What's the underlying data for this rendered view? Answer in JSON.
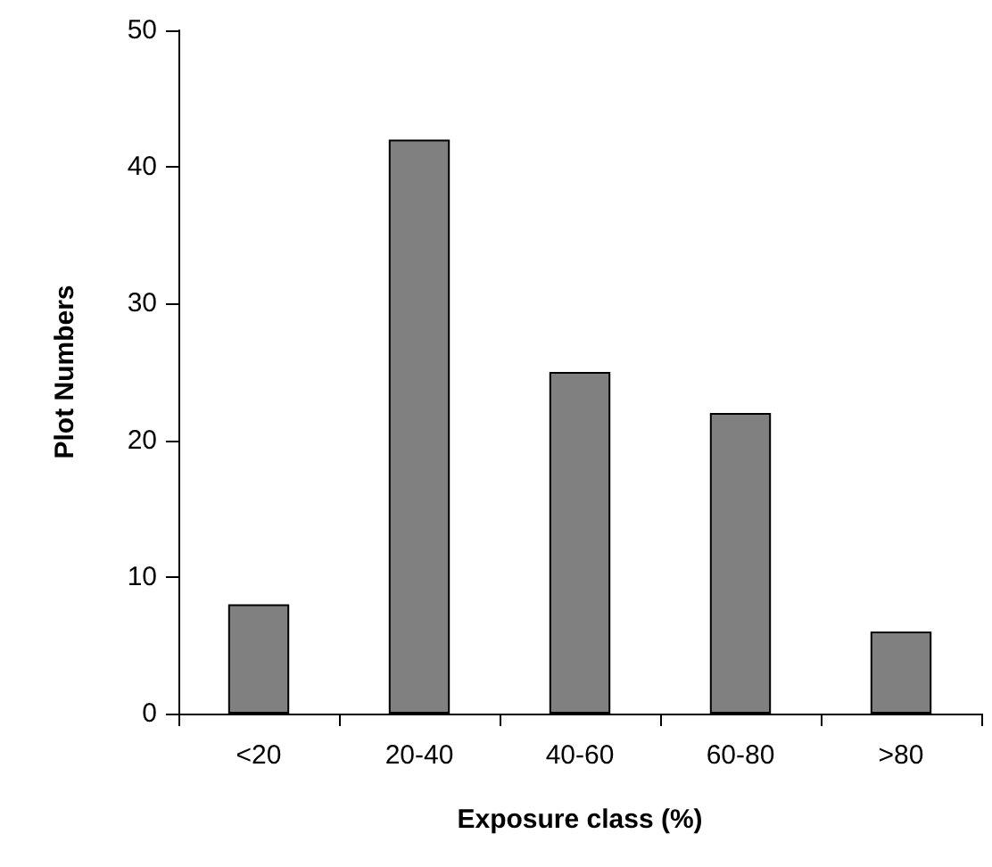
{
  "chart_data": {
    "type": "bar",
    "xlabel": "Exposure class (%)",
    "ylabel": "Plot Numbers",
    "categories": [
      "<20",
      "20-40",
      "40-60",
      "60-80",
      ">80"
    ],
    "values": [
      8,
      42,
      25,
      22,
      6
    ],
    "color": "#808080",
    "ylim": [
      0,
      50
    ],
    "yticks": [
      0,
      10,
      20,
      30,
      40,
      50
    ],
    "grid": false
  }
}
